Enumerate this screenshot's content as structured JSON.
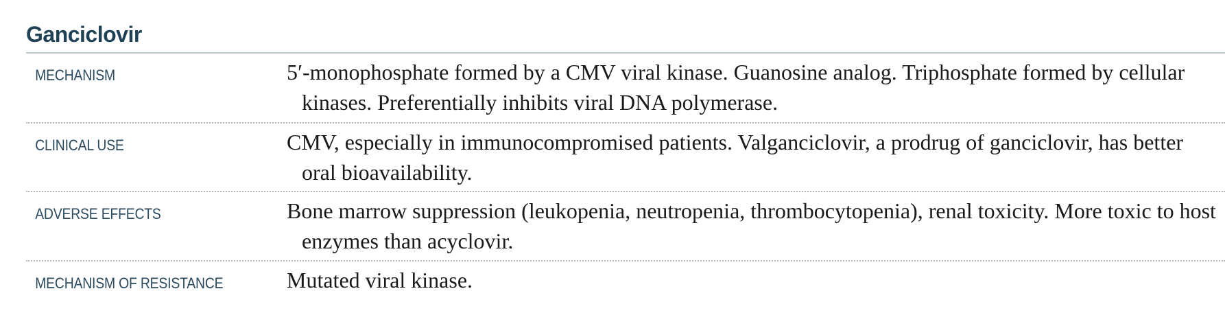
{
  "drug": {
    "title": "Ganciclovir"
  },
  "rows": [
    {
      "label": "MECHANISM",
      "text": "5′-monophosphate formed by a CMV viral kinase. Guanosine analog. Triphosphate formed by cellular kinases. Preferentially inhibits viral DNA polymerase."
    },
    {
      "label": "CLINICAL USE",
      "text": "CMV, especially in immunocompromised patients. Valganciclovir, a prodrug of ganciclovir, has better oral bioavailability."
    },
    {
      "label": "ADVERSE EFFECTS",
      "text": "Bone marrow suppression (leukopenia, neutropenia, thrombocytopenia), renal toxicity. More toxic to host enzymes than acyclovir."
    },
    {
      "label": "MECHANISM OF RESISTANCE",
      "text": "Mutated viral kinase."
    }
  ],
  "colors": {
    "title": "#1f4256",
    "label": "#2b4a5e",
    "rule": "#b9c9cf",
    "divider": "#b8b8b8",
    "body_text": "#1a1a1a"
  }
}
